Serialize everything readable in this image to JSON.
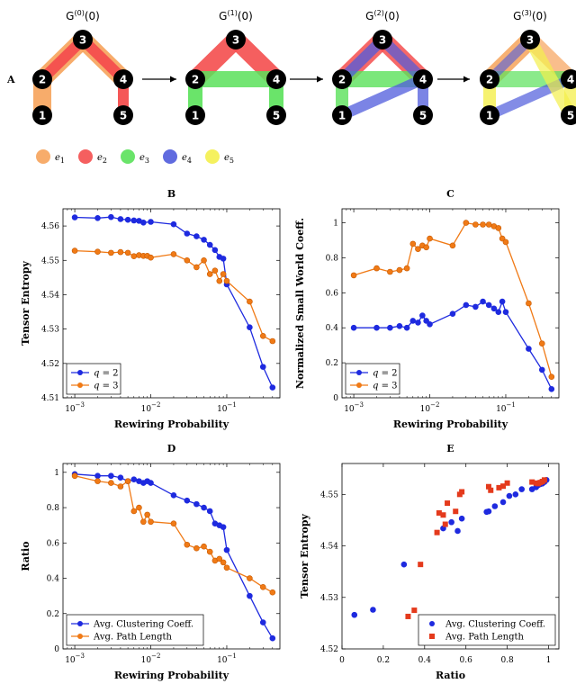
{
  "colors": {
    "e1": "#f6a35b",
    "e2": "#f44e4e",
    "e3": "#5ae15a",
    "e4": "#4f5bdc",
    "e5": "#f4ef4c",
    "blue": "#1e2adf",
    "orange": "#f07a16",
    "red": "#e43a1c"
  },
  "panelA": {
    "label": "A",
    "graphs": [
      {
        "title_base": "G",
        "title_sup": "(0)",
        "title_arg": "(0)"
      },
      {
        "title_base": "G",
        "title_sup": "(1)",
        "title_arg": "(0)"
      },
      {
        "title_base": "G",
        "title_sup": "(2)",
        "title_arg": "(0)"
      },
      {
        "title_base": "G",
        "title_sup": "(3)",
        "title_arg": "(0)"
      }
    ],
    "node_labels": [
      "1",
      "2",
      "3",
      "4",
      "5"
    ],
    "legend": [
      {
        "base": "e",
        "sub": "1",
        "color": "e1"
      },
      {
        "base": "e",
        "sub": "2",
        "color": "e2"
      },
      {
        "base": "e",
        "sub": "3",
        "color": "e3"
      },
      {
        "base": "e",
        "sub": "4",
        "color": "e4"
      },
      {
        "base": "e",
        "sub": "5",
        "color": "e5"
      }
    ]
  },
  "chart_data": [
    {
      "id": "B",
      "title": "B",
      "type": "line",
      "xscale": "log",
      "xlabel": "Rewiring Probability",
      "ylabel": "Tensor Entropy",
      "xlim": [
        0.0007,
        0.5
      ],
      "ylim": [
        4.51,
        4.565
      ],
      "xticks": [
        {
          "v": 0.001,
          "b": "10",
          "e": "−3"
        },
        {
          "v": 0.01,
          "b": "10",
          "e": "−2"
        },
        {
          "v": 0.1,
          "b": "10",
          "e": "−1"
        }
      ],
      "yticks": [
        4.51,
        4.52,
        4.53,
        4.54,
        4.55,
        4.56
      ],
      "legend_position": "bottom-left",
      "series": [
        {
          "name_var": "q",
          "name_val": " = 2",
          "color": "blue",
          "marker": "circle",
          "x": [
            0.001,
            0.002,
            0.003,
            0.004,
            0.005,
            0.006,
            0.007,
            0.008,
            0.01,
            0.02,
            0.03,
            0.04,
            0.05,
            0.06,
            0.07,
            0.08,
            0.09,
            0.1,
            0.2,
            0.3,
            0.4
          ],
          "y": [
            4.5625,
            4.5623,
            4.5626,
            4.562,
            4.5618,
            4.5616,
            4.5615,
            4.561,
            4.5612,
            4.5605,
            4.5578,
            4.557,
            4.556,
            4.5545,
            4.553,
            4.551,
            4.5505,
            4.543,
            4.5305,
            4.519,
            4.513
          ]
        },
        {
          "name_var": "q",
          "name_val": " = 3",
          "color": "orange",
          "marker": "circle",
          "x": [
            0.001,
            0.002,
            0.003,
            0.004,
            0.005,
            0.006,
            0.007,
            0.008,
            0.009,
            0.01,
            0.02,
            0.03,
            0.04,
            0.05,
            0.06,
            0.07,
            0.08,
            0.09,
            0.1,
            0.2,
            0.3,
            0.4
          ],
          "y": [
            4.5528,
            4.5525,
            4.5522,
            4.5524,
            4.5522,
            4.5512,
            4.5515,
            4.5513,
            4.5513,
            4.5508,
            4.5518,
            4.55,
            4.548,
            4.55,
            4.546,
            4.547,
            4.544,
            4.546,
            4.544,
            4.538,
            4.528,
            4.5265
          ]
        }
      ]
    },
    {
      "id": "C",
      "title": "C",
      "type": "line",
      "xscale": "log",
      "xlabel": "Rewiring Probability",
      "ylabel": "Normalized Small World Coeff.",
      "xlim": [
        0.0007,
        0.5
      ],
      "ylim": [
        0,
        1.08
      ],
      "xticks": [
        {
          "v": 0.001,
          "b": "10",
          "e": "−3"
        },
        {
          "v": 0.01,
          "b": "10",
          "e": "−2"
        },
        {
          "v": 0.1,
          "b": "10",
          "e": "−1"
        }
      ],
      "yticks": [
        0,
        0.2,
        0.4,
        0.6,
        0.8,
        1
      ],
      "legend_position": "bottom-left",
      "series": [
        {
          "name_var": "q",
          "name_val": " = 2",
          "color": "blue",
          "marker": "circle",
          "x": [
            0.001,
            0.002,
            0.003,
            0.004,
            0.005,
            0.006,
            0.007,
            0.008,
            0.009,
            0.01,
            0.02,
            0.03,
            0.04,
            0.05,
            0.06,
            0.07,
            0.08,
            0.09,
            0.1,
            0.2,
            0.3,
            0.4
          ],
          "y": [
            0.4,
            0.4,
            0.4,
            0.41,
            0.4,
            0.44,
            0.43,
            0.47,
            0.44,
            0.42,
            0.48,
            0.53,
            0.52,
            0.55,
            0.53,
            0.51,
            0.49,
            0.55,
            0.49,
            0.28,
            0.16,
            0.05
          ]
        },
        {
          "name_var": "q",
          "name_val": " = 3",
          "color": "orange",
          "marker": "circle",
          "x": [
            0.001,
            0.002,
            0.003,
            0.004,
            0.005,
            0.006,
            0.007,
            0.008,
            0.009,
            0.01,
            0.02,
            0.03,
            0.04,
            0.05,
            0.06,
            0.07,
            0.08,
            0.09,
            0.1,
            0.2,
            0.3,
            0.4
          ],
          "y": [
            0.7,
            0.74,
            0.72,
            0.73,
            0.74,
            0.88,
            0.85,
            0.87,
            0.86,
            0.91,
            0.87,
            1.0,
            0.99,
            0.99,
            0.99,
            0.98,
            0.97,
            0.91,
            0.89,
            0.54,
            0.31,
            0.12
          ]
        }
      ]
    },
    {
      "id": "D",
      "title": "D",
      "type": "line",
      "xscale": "log",
      "xlabel": "Rewiring Probability",
      "ylabel": "Ratio",
      "xlim": [
        0.0007,
        0.5
      ],
      "ylim": [
        0,
        1.05
      ],
      "xticks": [
        {
          "v": 0.001,
          "b": "10",
          "e": "−3"
        },
        {
          "v": 0.01,
          "b": "10",
          "e": "−2"
        },
        {
          "v": 0.1,
          "b": "10",
          "e": "−1"
        }
      ],
      "yticks": [
        0,
        0.2,
        0.4,
        0.6,
        0.8,
        1
      ],
      "legend_position": "bottom-left",
      "series": [
        {
          "name": "Avg. Clustering Coeff.",
          "color": "blue",
          "marker": "circle",
          "x": [
            0.001,
            0.002,
            0.003,
            0.004,
            0.005,
            0.006,
            0.007,
            0.008,
            0.009,
            0.01,
            0.02,
            0.03,
            0.04,
            0.05,
            0.06,
            0.07,
            0.08,
            0.09,
            0.1,
            0.2,
            0.3,
            0.4
          ],
          "y": [
            0.99,
            0.98,
            0.98,
            0.97,
            0.95,
            0.96,
            0.95,
            0.94,
            0.95,
            0.94,
            0.87,
            0.84,
            0.82,
            0.8,
            0.78,
            0.71,
            0.7,
            0.69,
            0.56,
            0.3,
            0.15,
            0.06
          ]
        },
        {
          "name": "Avg. Path Length",
          "color": "orange",
          "marker": "circle",
          "x": [
            0.001,
            0.002,
            0.003,
            0.004,
            0.005,
            0.006,
            0.007,
            0.008,
            0.009,
            0.01,
            0.02,
            0.03,
            0.04,
            0.05,
            0.06,
            0.07,
            0.08,
            0.09,
            0.1,
            0.2,
            0.3,
            0.4
          ],
          "y": [
            0.98,
            0.95,
            0.94,
            0.92,
            0.95,
            0.78,
            0.8,
            0.72,
            0.76,
            0.72,
            0.71,
            0.59,
            0.57,
            0.58,
            0.55,
            0.5,
            0.51,
            0.49,
            0.46,
            0.4,
            0.35,
            0.32
          ]
        }
      ]
    },
    {
      "id": "E",
      "title": "E",
      "type": "scatter",
      "xscale": "linear",
      "xlabel": "Ratio",
      "ylabel": "Tensor Entropy",
      "xlim": [
        0,
        1.05
      ],
      "ylim": [
        4.52,
        4.556
      ],
      "xticks": [
        {
          "v": 0,
          "b": "0"
        },
        {
          "v": 0.2,
          "b": "0.2"
        },
        {
          "v": 0.4,
          "b": "0.4"
        },
        {
          "v": 0.6,
          "b": "0.6"
        },
        {
          "v": 0.8,
          "b": "0.8"
        },
        {
          "v": 1,
          "b": "1"
        }
      ],
      "yticks": [
        4.52,
        4.53,
        4.54,
        4.55
      ],
      "legend_position": "bottom-right",
      "series": [
        {
          "name": "Avg. Clustering Coeff.",
          "color": "blue",
          "marker": "circle",
          "x": [
            0.06,
            0.15,
            0.3,
            0.56,
            0.49,
            0.53,
            0.58,
            0.7,
            0.71,
            0.74,
            0.78,
            0.81,
            0.84,
            0.87,
            0.92,
            0.94,
            0.95,
            0.95,
            0.96,
            0.97,
            0.98,
            0.98,
            0.99
          ],
          "y": [
            4.5266,
            4.5276,
            4.5364,
            4.5429,
            4.5434,
            4.5446,
            4.5453,
            4.5466,
            4.5467,
            4.5477,
            4.5485,
            4.5497,
            4.55,
            4.551,
            4.551,
            4.5514,
            4.5518,
            4.5519,
            4.552,
            4.5521,
            4.5524,
            4.5526,
            4.5528
          ]
        },
        {
          "name": "Avg. Path Length",
          "color": "red",
          "marker": "square",
          "x": [
            0.32,
            0.35,
            0.38,
            0.46,
            0.5,
            0.49,
            0.47,
            0.55,
            0.51,
            0.57,
            0.58,
            0.71,
            0.72,
            0.76,
            0.78,
            0.8,
            0.92,
            0.94,
            0.95,
            0.96,
            0.97,
            0.98
          ],
          "y": [
            4.5263,
            4.5275,
            4.5364,
            4.5426,
            4.5442,
            4.546,
            4.5464,
            4.5467,
            4.5483,
            4.55,
            4.5505,
            4.5515,
            4.5508,
            4.5513,
            4.5516,
            4.5522,
            4.5524,
            4.5522,
            4.5521,
            4.5523,
            4.5525,
            4.5528
          ]
        }
      ]
    }
  ]
}
